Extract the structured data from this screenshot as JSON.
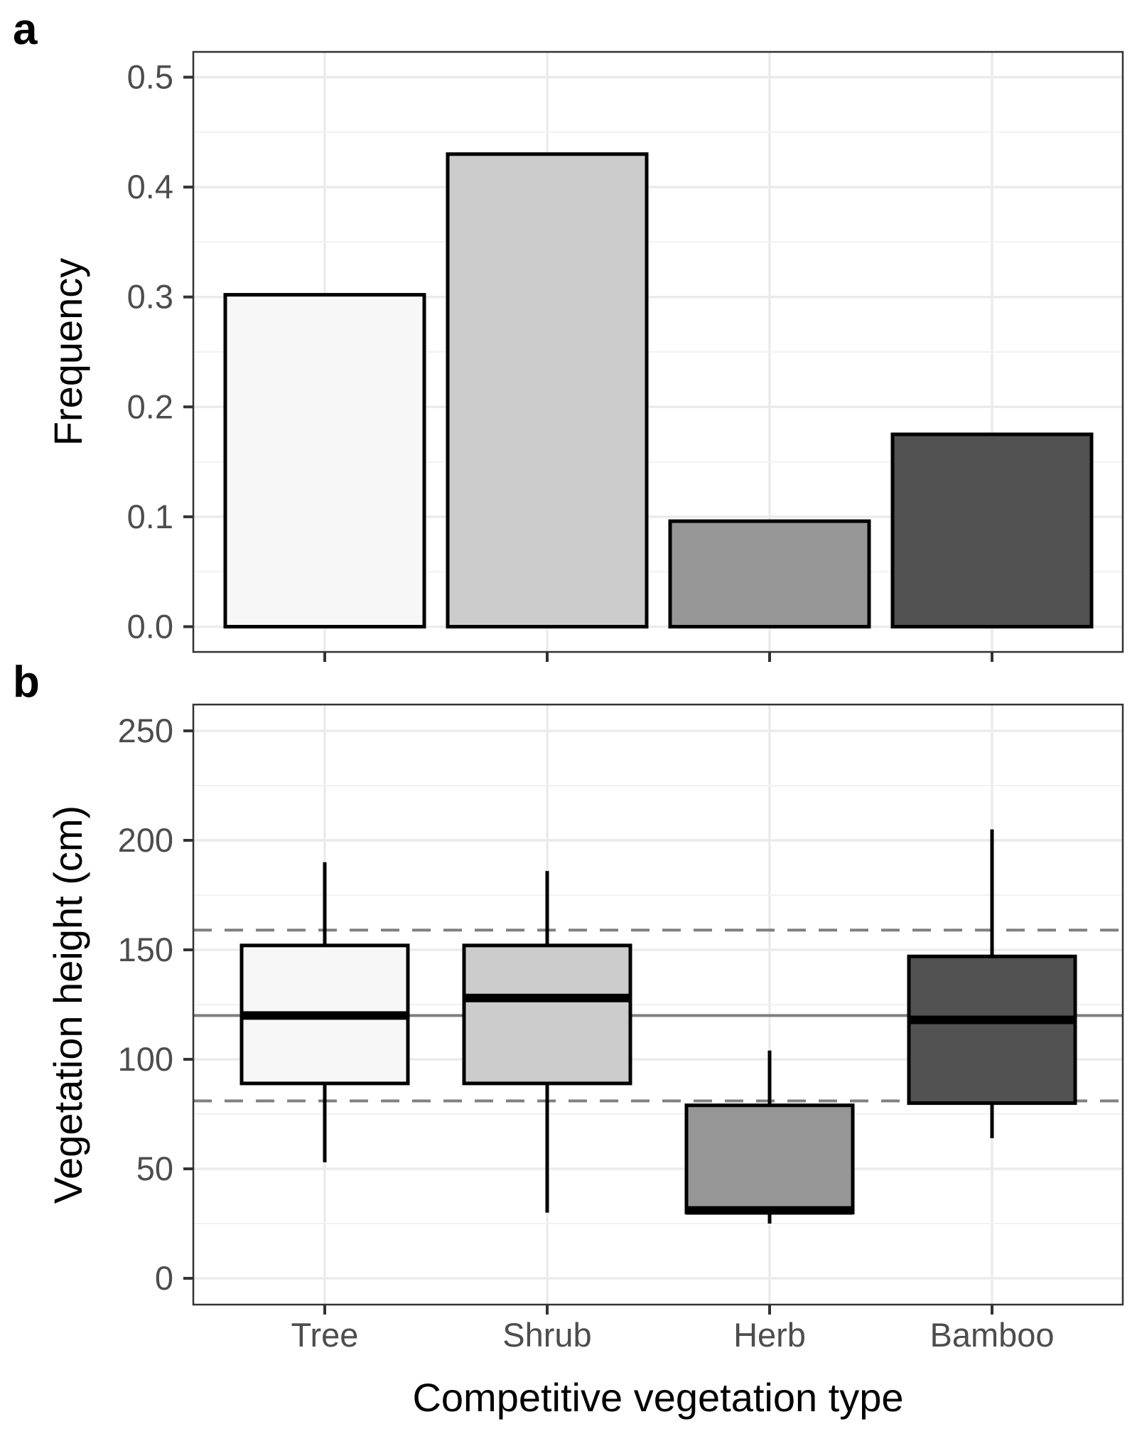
{
  "chart_data": [
    {
      "panel": "a",
      "type": "bar",
      "categories": [
        "Tree",
        "Shrub",
        "Herb",
        "Bamboo"
      ],
      "values": [
        0.302,
        0.43,
        0.096,
        0.175
      ],
      "colors": [
        "#f7f7f7",
        "#cccccc",
        "#969696",
        "#525252"
      ],
      "xlabel": "",
      "ylabel": "Frequency",
      "ylim": [
        -0.023,
        0.523
      ],
      "yticks": [
        0.0,
        0.1,
        0.2,
        0.3,
        0.4,
        0.5
      ],
      "ytick_labels": [
        "0.0",
        "0.1",
        "0.2",
        "0.3",
        "0.4",
        "0.5"
      ],
      "grid": true
    },
    {
      "panel": "b",
      "type": "box",
      "categories": [
        "Tree",
        "Shrub",
        "Herb",
        "Bamboo"
      ],
      "series": [
        {
          "name": "Tree",
          "whisker_low": 53,
          "q1": 89,
          "median": 120,
          "q3": 152,
          "whisker_high": 190
        },
        {
          "name": "Shrub",
          "whisker_low": 30,
          "q1": 89,
          "median": 128,
          "q3": 152,
          "whisker_high": 186
        },
        {
          "name": "Herb",
          "whisker_low": 25,
          "q1": 30,
          "median": 31,
          "q3": 79,
          "whisker_high": 104
        },
        {
          "name": "Bamboo",
          "whisker_low": 64,
          "q1": 80,
          "median": 118,
          "q3": 147,
          "whisker_high": 205
        }
      ],
      "colors": [
        "#f7f7f7",
        "#cccccc",
        "#969696",
        "#525252"
      ],
      "reference_lines": {
        "solid": 120,
        "dashed": [
          81,
          159
        ]
      },
      "xlabel": "Competitive vegetation type",
      "ylabel": "Vegetation height (cm)",
      "ylim": [
        -12,
        262
      ],
      "yticks": [
        0,
        50,
        100,
        150,
        200,
        250
      ],
      "ytick_labels": [
        "0",
        "50",
        "100",
        "150",
        "200",
        "250"
      ],
      "xtick_labels": [
        "Tree",
        "Shrub",
        "Herb",
        "Bamboo"
      ],
      "grid": true
    }
  ],
  "panel_labels": {
    "a": "a",
    "b": "b"
  }
}
